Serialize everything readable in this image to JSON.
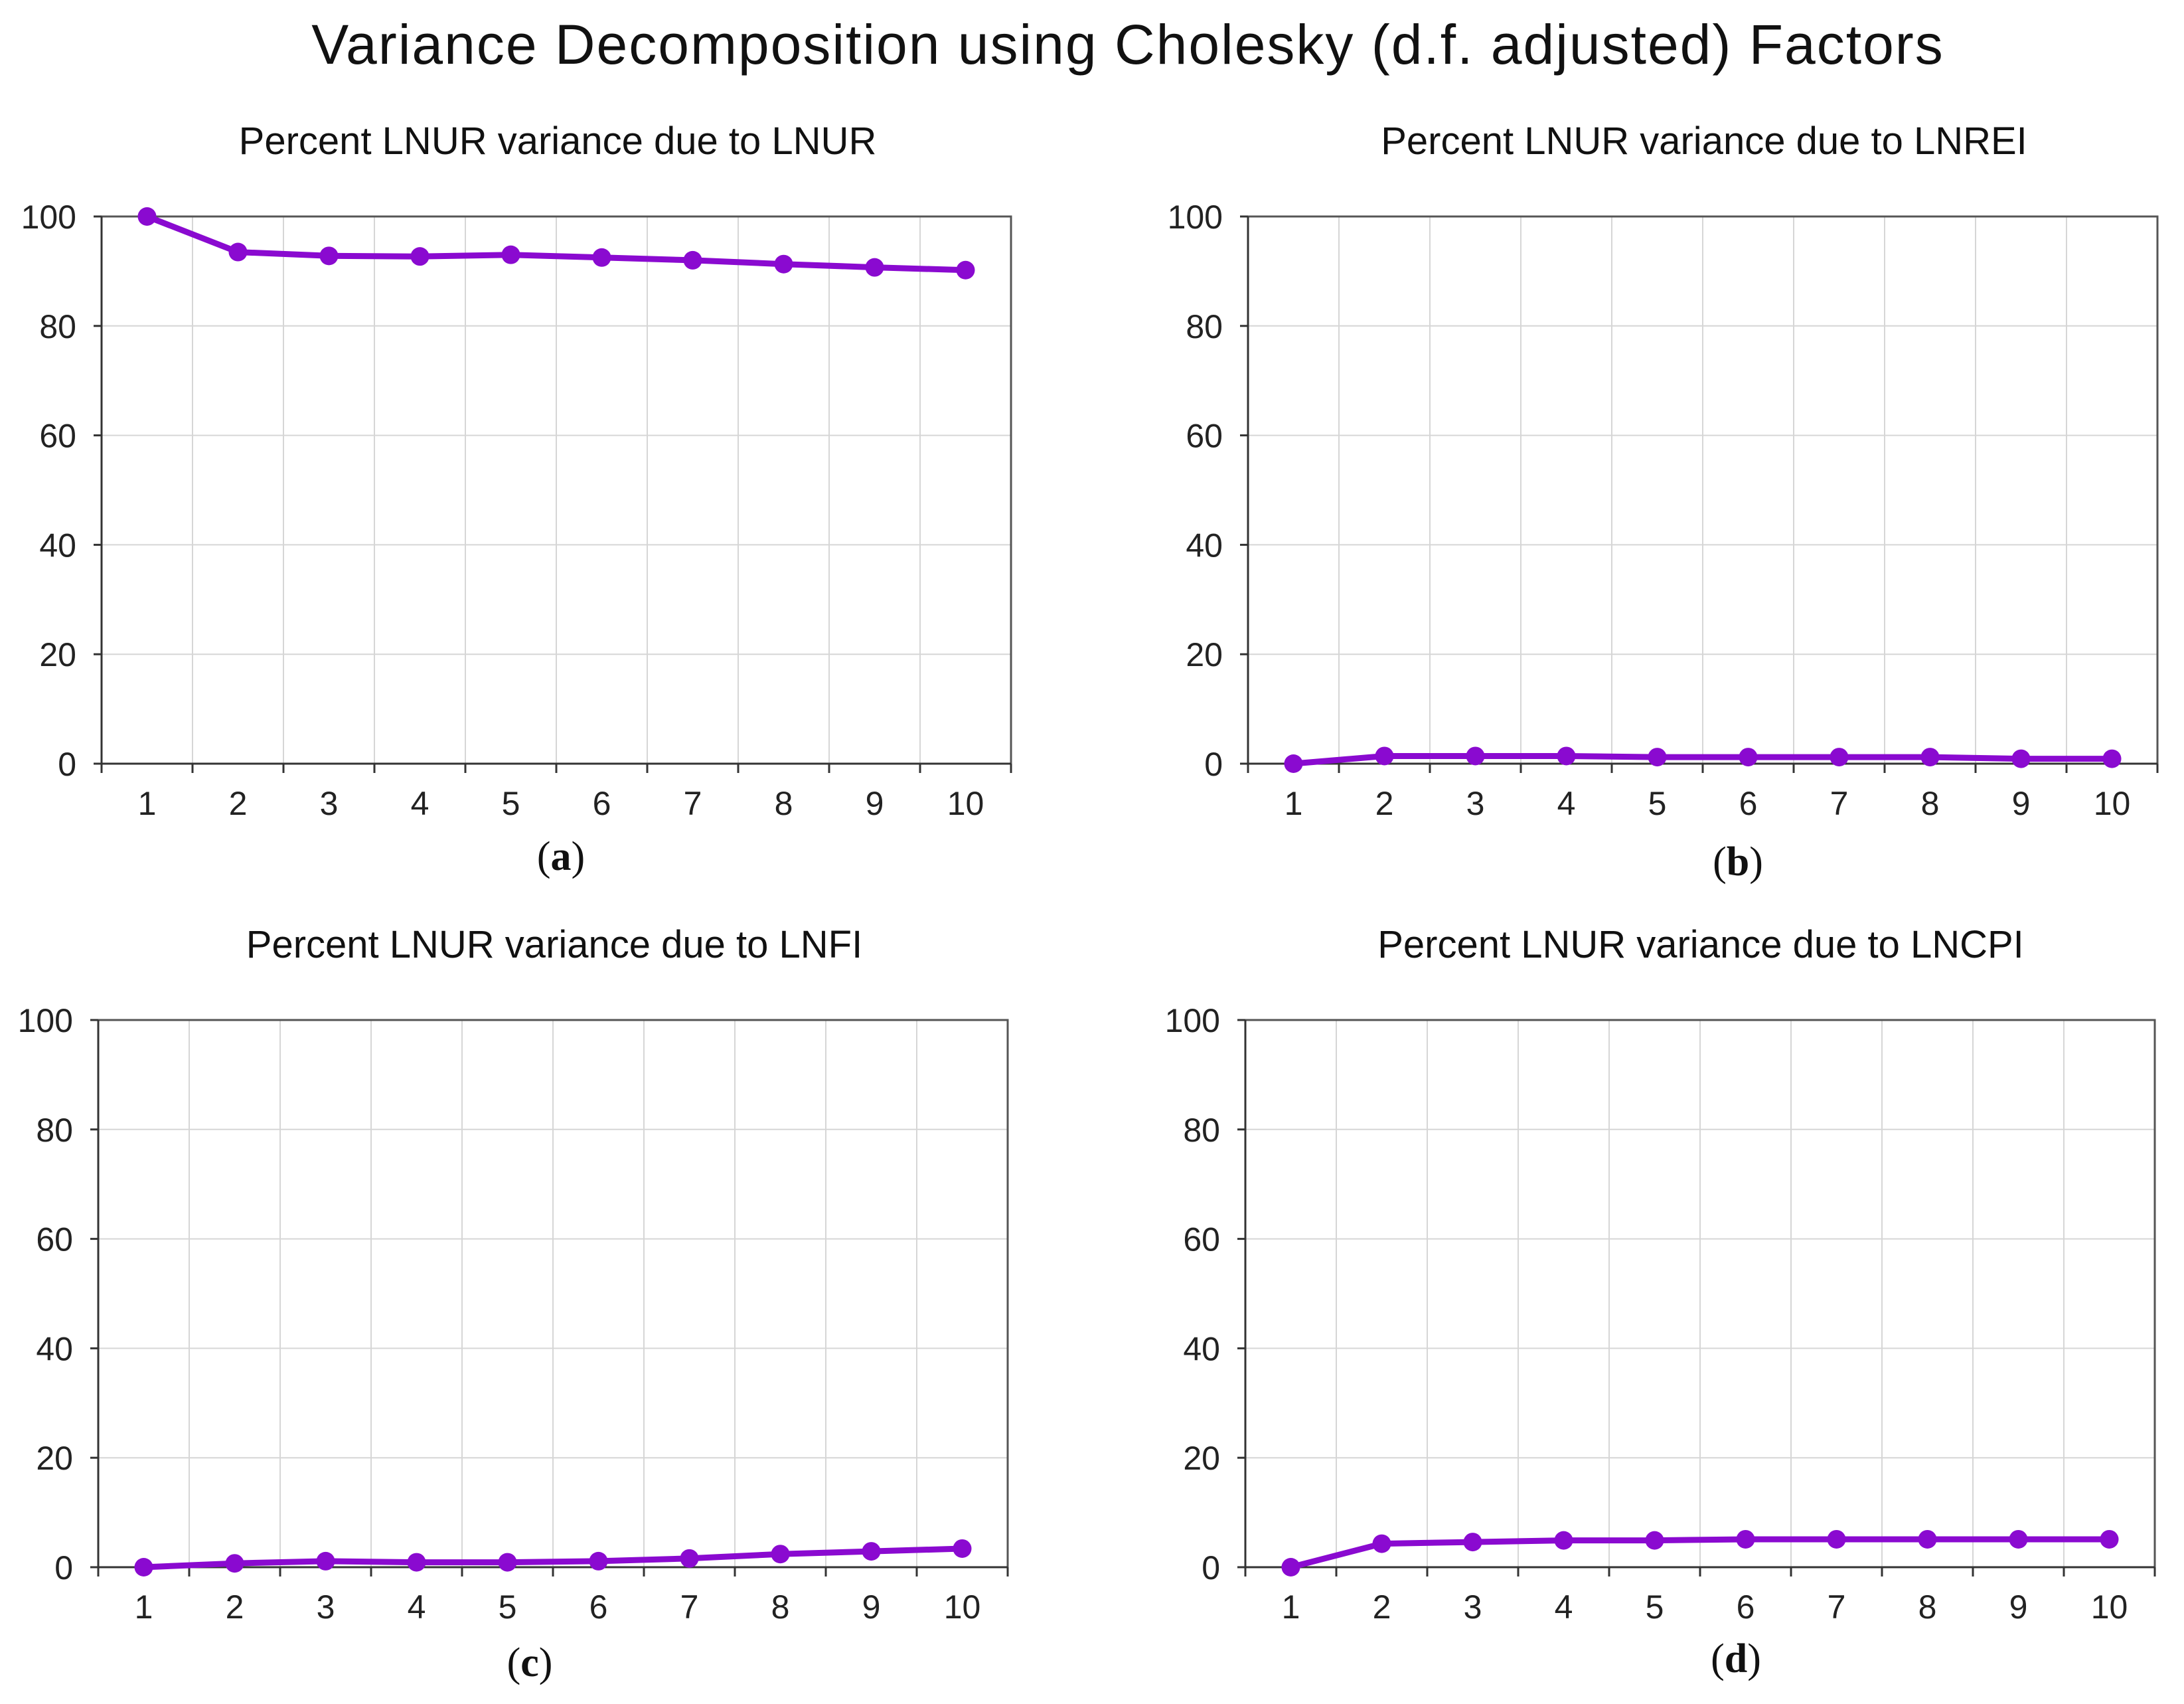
{
  "title": "Variance Decomposition using Cholesky (d.f. adjusted) Factors",
  "colors": {
    "series": "#8a0ad0",
    "grid": "#d6d6d6",
    "frame": "#555555"
  },
  "chart_data": [
    {
      "type": "line",
      "panel_label": "a",
      "title": "Percent LNUR variance due to LNUR",
      "x": [
        1,
        2,
        3,
        4,
        5,
        6,
        7,
        8,
        9,
        10
      ],
      "x_tick_labels": [
        "1",
        "2",
        "3",
        "4",
        "5",
        "6",
        "7",
        "8",
        "9",
        "10"
      ],
      "y_tick_labels": [
        "0",
        "20",
        "40",
        "60",
        "80",
        "100"
      ],
      "y_ticks": [
        0,
        20,
        40,
        60,
        80,
        100
      ],
      "ylim": [
        0,
        100
      ],
      "grid": true,
      "series": [
        {
          "name": "LNUR",
          "values": [
            100.0,
            93.5,
            92.8,
            92.7,
            93.0,
            92.5,
            92.0,
            91.3,
            90.7,
            90.2
          ]
        }
      ]
    },
    {
      "type": "line",
      "panel_label": "b",
      "title": "Percent LNUR variance due to LNREI",
      "x": [
        1,
        2,
        3,
        4,
        5,
        6,
        7,
        8,
        9,
        10
      ],
      "x_tick_labels": [
        "1",
        "2",
        "3",
        "4",
        "5",
        "6",
        "7",
        "8",
        "9",
        "10"
      ],
      "y_tick_labels": [
        "0",
        "20",
        "40",
        "60",
        "80",
        "100"
      ],
      "y_ticks": [
        0,
        20,
        40,
        60,
        80,
        100
      ],
      "ylim": [
        0,
        100
      ],
      "grid": true,
      "series": [
        {
          "name": "LNREI",
          "values": [
            0.0,
            1.4,
            1.4,
            1.4,
            1.2,
            1.2,
            1.2,
            1.2,
            0.9,
            0.9
          ]
        }
      ]
    },
    {
      "type": "line",
      "panel_label": "c",
      "title": "Percent LNUR variance due to LNFI",
      "x": [
        1,
        2,
        3,
        4,
        5,
        6,
        7,
        8,
        9,
        10
      ],
      "x_tick_labels": [
        "1",
        "2",
        "3",
        "4",
        "5",
        "6",
        "7",
        "8",
        "9",
        "10"
      ],
      "y_tick_labels": [
        "0",
        "20",
        "40",
        "60",
        "80",
        "100"
      ],
      "y_ticks": [
        0,
        20,
        40,
        60,
        80,
        100
      ],
      "ylim": [
        0,
        100
      ],
      "grid": true,
      "series": [
        {
          "name": "LNFI",
          "values": [
            0.0,
            0.7,
            1.1,
            0.9,
            0.9,
            1.1,
            1.6,
            2.4,
            2.9,
            3.4
          ]
        }
      ]
    },
    {
      "type": "line",
      "panel_label": "d",
      "title": "Percent LNUR variance due to LNCPI",
      "x": [
        1,
        2,
        3,
        4,
        5,
        6,
        7,
        8,
        9,
        10
      ],
      "x_tick_labels": [
        "1",
        "2",
        "3",
        "4",
        "5",
        "6",
        "7",
        "8",
        "9",
        "10"
      ],
      "y_tick_labels": [
        "0",
        "20",
        "40",
        "60",
        "80",
        "100"
      ],
      "y_ticks": [
        0,
        20,
        40,
        60,
        80,
        100
      ],
      "ylim": [
        0,
        100
      ],
      "grid": true,
      "series": [
        {
          "name": "LNCPI",
          "values": [
            0.0,
            4.3,
            4.6,
            4.9,
            4.9,
            5.1,
            5.1,
            5.1,
            5.1,
            5.1
          ]
        }
      ]
    }
  ]
}
